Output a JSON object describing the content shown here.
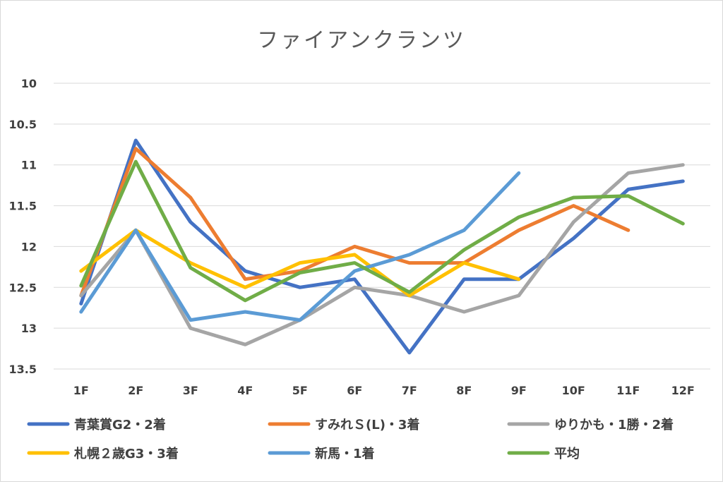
{
  "chart_data": {
    "type": "line",
    "title": "ファイアンクランツ",
    "categories": [
      "1F",
      "2F",
      "3F",
      "4F",
      "5F",
      "6F",
      "7F",
      "8F",
      "9F",
      "10F",
      "11F",
      "12F"
    ],
    "y_axis": {
      "reversed": true,
      "ylim": [
        10,
        13.5
      ],
      "ticks": [
        "10",
        "10.5",
        "11",
        "11.5",
        "12",
        "12.5",
        "13",
        "13.5"
      ]
    },
    "grid": true,
    "legend_position": "bottom",
    "series": [
      {
        "name": "青葉賞G2・2着",
        "color": "#4472c4",
        "values": [
          12.7,
          10.7,
          11.7,
          12.3,
          12.5,
          12.4,
          13.3,
          12.4,
          12.4,
          11.9,
          11.3,
          11.2
        ]
      },
      {
        "name": "すみれＳ(L)・3着",
        "color": "#ed7d31",
        "values": [
          12.6,
          10.8,
          11.4,
          12.4,
          12.3,
          12.0,
          12.2,
          12.2,
          11.8,
          11.5,
          11.8,
          null
        ]
      },
      {
        "name": "ゆりかも・1勝・2着",
        "color": "#a5a5a5",
        "values": [
          12.6,
          11.8,
          13.0,
          13.2,
          12.9,
          12.5,
          12.6,
          12.8,
          12.6,
          11.7,
          11.1,
          11.0
        ]
      },
      {
        "name": "札幌２歳G3・3着",
        "color": "#ffc000",
        "values": [
          12.3,
          11.8,
          12.2,
          12.5,
          12.2,
          12.1,
          12.6,
          12.2,
          12.4,
          null,
          null,
          null
        ]
      },
      {
        "name": "新馬・1着",
        "color": "#5b9bd5",
        "values": [
          12.8,
          11.8,
          12.9,
          12.8,
          12.9,
          12.3,
          12.1,
          11.8,
          11.1,
          null,
          null,
          null
        ]
      },
      {
        "name": "平均",
        "color": "#70ad47",
        "values": [
          12.48,
          10.96,
          12.26,
          12.66,
          12.32,
          12.2,
          12.56,
          12.04,
          11.64,
          11.4,
          11.38,
          11.72
        ]
      }
    ]
  }
}
